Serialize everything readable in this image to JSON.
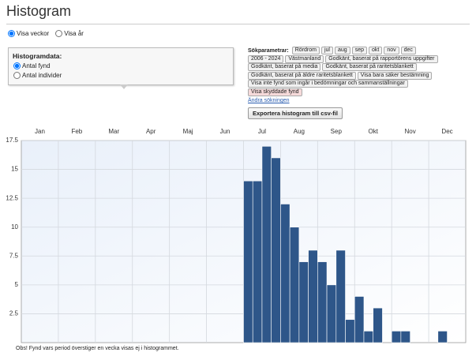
{
  "header": {
    "title": "Histogram"
  },
  "view_options": [
    {
      "label": "Visa veckor",
      "checked": true
    },
    {
      "label": "Visa år",
      "checked": false
    }
  ],
  "histogram_data": {
    "title": "Histogramdata:",
    "options": [
      {
        "label": "Antal fynd",
        "checked": true
      },
      {
        "label": "Antal individer",
        "checked": false
      }
    ]
  },
  "search": {
    "label": "Sökparametrar:",
    "rows": [
      [
        "Rördrom",
        "jul",
        "aug",
        "sep",
        "okt",
        "nov",
        "dec"
      ],
      [
        "2006 - 2024",
        "Västmanland",
        "Godkänt, baserat på rapportörens uppgifter"
      ],
      [
        "Godkänt, baserat på media",
        "Godkänt, baserat på raritetsblankett"
      ],
      [
        "Godkänt, baserat på äldre raritetsblankett",
        "Visa bara säker bestämning"
      ],
      [
        "Visa inte fynd som ingår i bedömningar och sammanställningar"
      ]
    ],
    "warning_tag": "Visa skyddade fynd",
    "warning_color": "#f6dada",
    "change_link": "Ändra sökningen",
    "export_button": "Exportera histogram till csv-fil"
  },
  "chart_data": {
    "type": "bar",
    "months": [
      "Jan",
      "Feb",
      "Mar",
      "Apr",
      "Maj",
      "Jun",
      "Jul",
      "Aug",
      "Sep",
      "Okt",
      "Nov",
      "Dec"
    ],
    "values": [
      0,
      0,
      0,
      0,
      0,
      0,
      0,
      0,
      0,
      0,
      0,
      0,
      0,
      0,
      0,
      0,
      0,
      0,
      0,
      0,
      0,
      0,
      0,
      0,
      14,
      14,
      17,
      16,
      12,
      10,
      7,
      8,
      7,
      5,
      8,
      2,
      4,
      1,
      3,
      0,
      1,
      1,
      0,
      0,
      0,
      1,
      0,
      0
    ],
    "color": "#2e5689",
    "ylim": [
      0,
      17.5
    ],
    "yticks": [
      2.5,
      5,
      7.5,
      10,
      12.5,
      15,
      17.5
    ],
    "grid": true
  },
  "footnote": "Obs! Fynd vars period överstiger en vecka visas ej i histogrammet."
}
